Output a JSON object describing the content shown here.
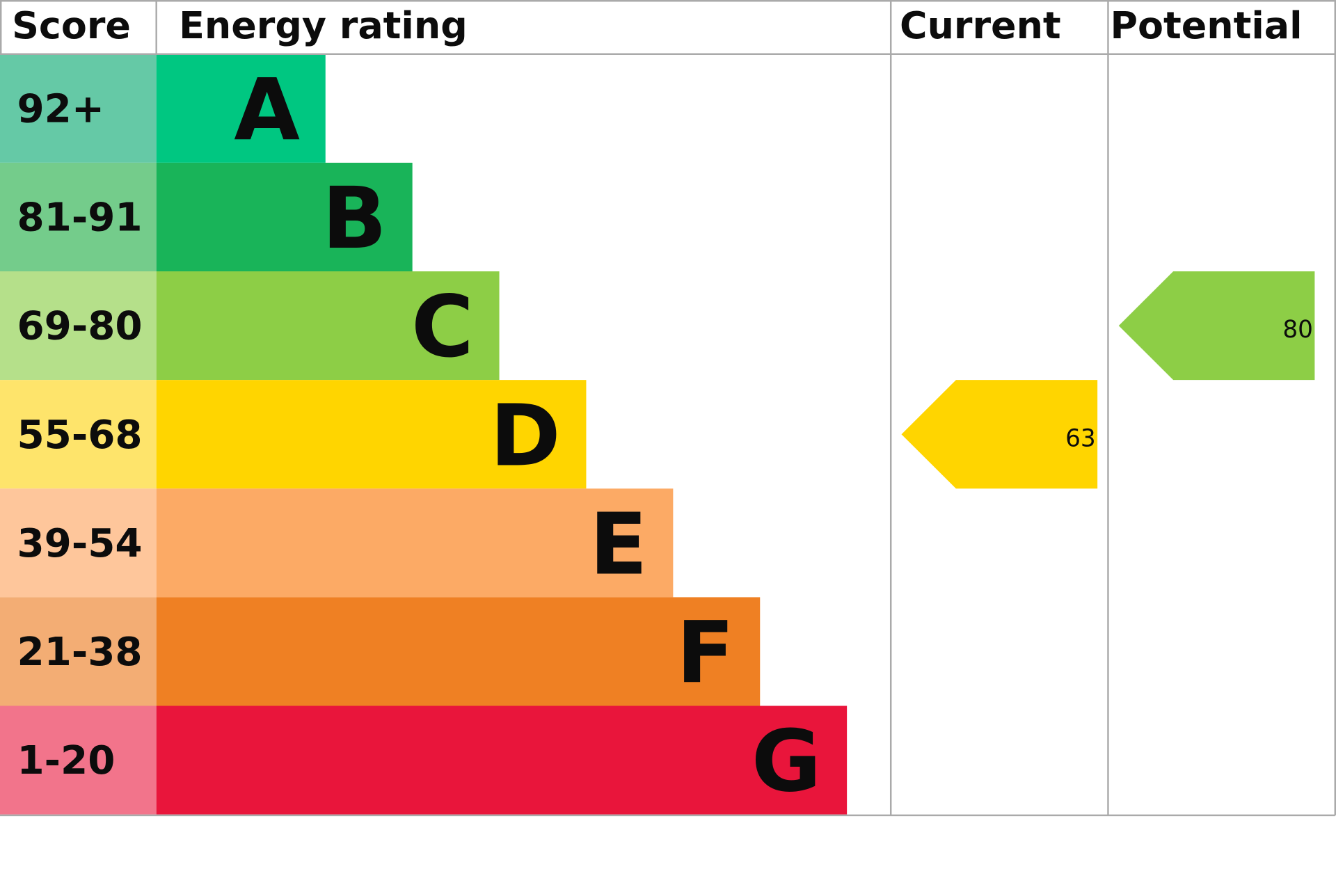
{
  "chart_data": {
    "type": "epc",
    "headers": {
      "score": "Score",
      "rating": "Energy rating",
      "current": "Current",
      "potential": "Potential"
    },
    "bands": [
      {
        "score": "92+",
        "letter": "A",
        "color": "#00c781",
        "score_color": "#65c9a6"
      },
      {
        "score": "81-91",
        "letter": "B",
        "color": "#19b459",
        "score_color": "#74cc8b"
      },
      {
        "score": "69-80",
        "letter": "C",
        "color": "#8dce46",
        "score_color": "#b5e08a"
      },
      {
        "score": "55-68",
        "letter": "D",
        "color": "#ffd500",
        "score_color": "#fee46b"
      },
      {
        "score": "39-54",
        "letter": "E",
        "color": "#fcaa65",
        "score_color": "#fec69b"
      },
      {
        "score": "21-38",
        "letter": "F",
        "color": "#ef8023",
        "score_color": "#f3ad74"
      },
      {
        "score": "1-20",
        "letter": "G",
        "color": "#e9153b",
        "score_color": "#f2748b"
      }
    ],
    "current": 63,
    "potential": 80
  }
}
